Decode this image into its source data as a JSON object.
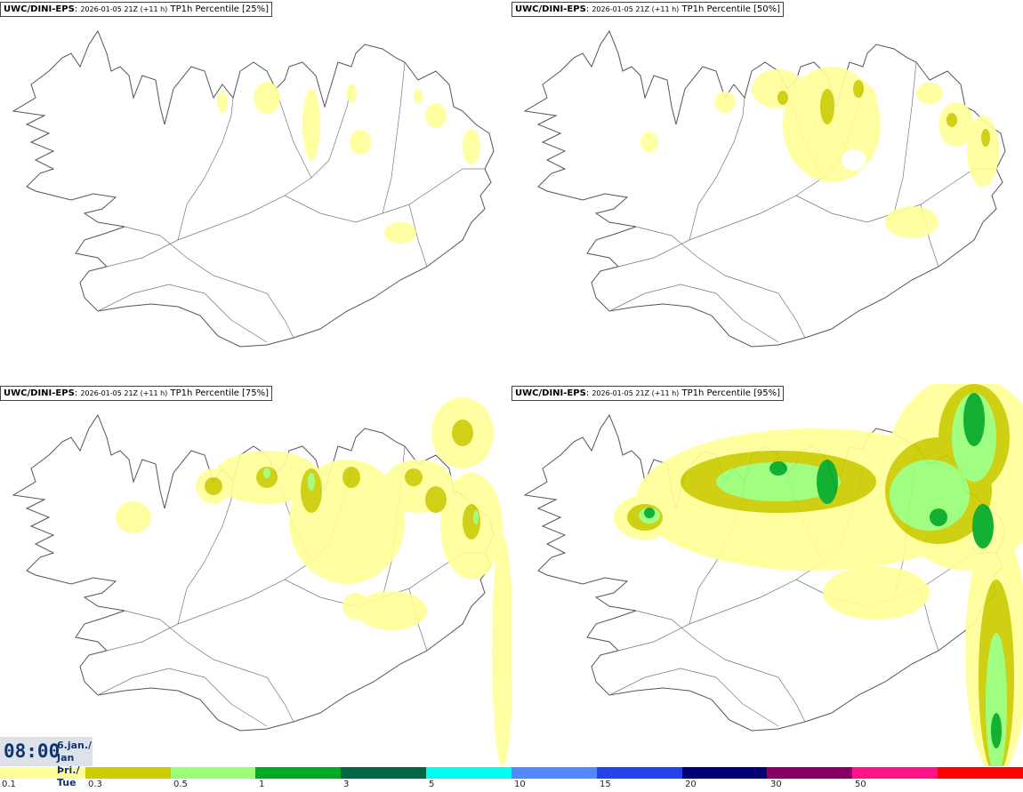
{
  "panels": [
    {
      "model": "UWC/DINI-EPS",
      "run": "2026-01-05 21Z (+11 h)",
      "product": "TP1h Percentile [25%]"
    },
    {
      "model": "UWC/DINI-EPS",
      "run": "2026-01-05 21Z (+11 h)",
      "product": "TP1h Percentile [50%]"
    },
    {
      "model": "UWC/DINI-EPS",
      "run": "2026-01-05 21Z (+11 h)",
      "product": "TP1h Percentile [75%]"
    },
    {
      "model": "UWC/DINI-EPS",
      "run": "2026-01-05 21Z (+11 h)",
      "product": "TP1h Percentile [95%]"
    }
  ],
  "valid_time": {
    "time": "08:00",
    "date_line1": "6.jan./ Jan",
    "date_line2": "Þri./ Tue"
  },
  "colorbar": {
    "colors": [
      "#ffff99",
      "#cccc00",
      "#99ff77",
      "#00aa22",
      "#006644",
      "#00ffee",
      "#5588ff",
      "#2244ee",
      "#000077",
      "#880066",
      "#ff1188",
      "#ff0000"
    ],
    "ticks": [
      "0.1",
      "0.3",
      "0.5",
      "1",
      "3",
      "5",
      "10",
      "15",
      "20",
      "30",
      "50"
    ]
  },
  "land_color": "#ffffff",
  "coast_color": "#555555"
}
